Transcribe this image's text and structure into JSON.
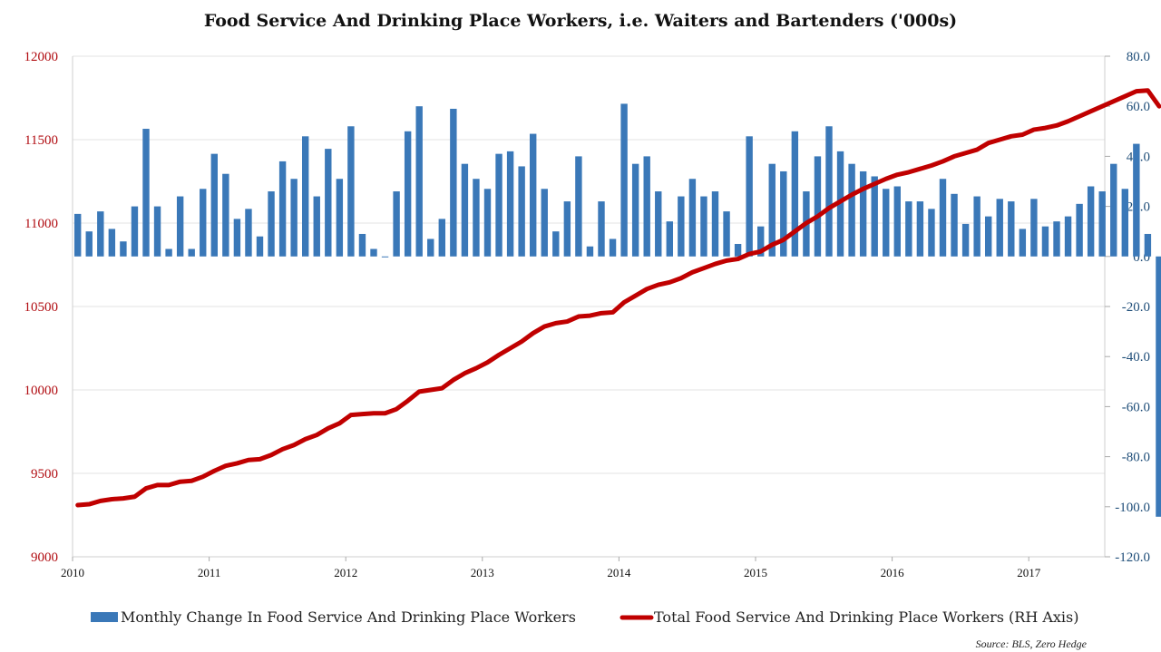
{
  "chart_data": {
    "type": "bar+line",
    "title": "Food Service And Drinking Place Workers, i.e. Waiters and Bartenders ('000s)",
    "source": "Source: BLS, Zero Hedge",
    "x_ticks": [
      "2010",
      "2011",
      "2012",
      "2013",
      "2014",
      "2015",
      "2016",
      "2017"
    ],
    "left_axis": {
      "ticks": [
        "12000",
        "11500",
        "11000",
        "10500",
        "10000",
        "9500",
        "9000"
      ],
      "range": [
        9000,
        12000
      ]
    },
    "right_axis": {
      "ticks": [
        "80.0",
        "60.0",
        "40.0",
        "20.0",
        "0.0",
        "-20.0",
        "-40.0",
        "-60.0",
        "-80.0",
        "-100.0",
        "-120.0"
      ],
      "range": [
        -120,
        80
      ]
    },
    "grid": true,
    "legend_position": "bottom",
    "colors": {
      "bars": "#3a78b8",
      "line": "#c00000",
      "left_axis": "#b10d12",
      "right_axis": "#1f4e79"
    },
    "series": [
      {
        "name": "Monthly Change In Food Service And Drinking Place Workers",
        "type": "bar",
        "axis": "right",
        "start": "2010-01",
        "values": [
          17,
          10,
          18,
          11,
          6,
          20,
          51,
          20,
          3,
          24,
          3,
          27,
          41,
          33,
          15,
          19,
          8,
          26,
          38,
          31,
          48,
          24,
          43,
          31,
          52,
          9,
          3,
          0,
          26,
          50,
          60,
          7,
          15,
          59,
          37,
          31,
          27,
          41,
          42,
          36,
          49,
          27,
          10,
          22,
          40,
          4,
          22,
          7,
          61,
          37,
          40,
          26,
          14,
          24,
          31,
          24,
          26,
          18,
          5,
          48,
          12,
          37,
          34,
          50,
          26,
          40,
          52,
          42,
          37,
          34,
          32,
          27,
          28,
          22,
          22,
          19,
          31,
          25,
          13,
          24,
          16,
          23,
          22,
          11,
          23,
          12,
          14,
          16,
          21,
          28,
          26,
          37,
          27,
          45,
          9,
          -104
        ]
      },
      {
        "name": "Total Food Service And Drinking Place Workers (RH Axis)",
        "type": "line",
        "axis": "left",
        "start": "2010-01",
        "values": [
          9310,
          9315,
          9335,
          9345,
          9350,
          9360,
          9410,
          9430,
          9430,
          9450,
          9455,
          9480,
          9515,
          9545,
          9560,
          9580,
          9585,
          9610,
          9645,
          9670,
          9705,
          9730,
          9770,
          9800,
          9850,
          9855,
          9860,
          9860,
          9885,
          9935,
          9990,
          10000,
          10010,
          10060,
          10100,
          10130,
          10165,
          10210,
          10250,
          10290,
          10340,
          10380,
          10400,
          10410,
          10440,
          10445,
          10460,
          10465,
          10525,
          10565,
          10605,
          10630,
          10645,
          10670,
          10705,
          10730,
          10755,
          10775,
          10785,
          10815,
          10830,
          10870,
          10900,
          10950,
          11000,
          11040,
          11090,
          11130,
          11170,
          11205,
          11235,
          11265,
          11290,
          11305,
          11325,
          11345,
          11370,
          11400,
          11420,
          11440,
          11480,
          11500,
          11520,
          11530,
          11560,
          11570,
          11585,
          11610,
          11640,
          11670,
          11700,
          11730,
          11760,
          11790,
          11795,
          11700
        ]
      }
    ]
  }
}
